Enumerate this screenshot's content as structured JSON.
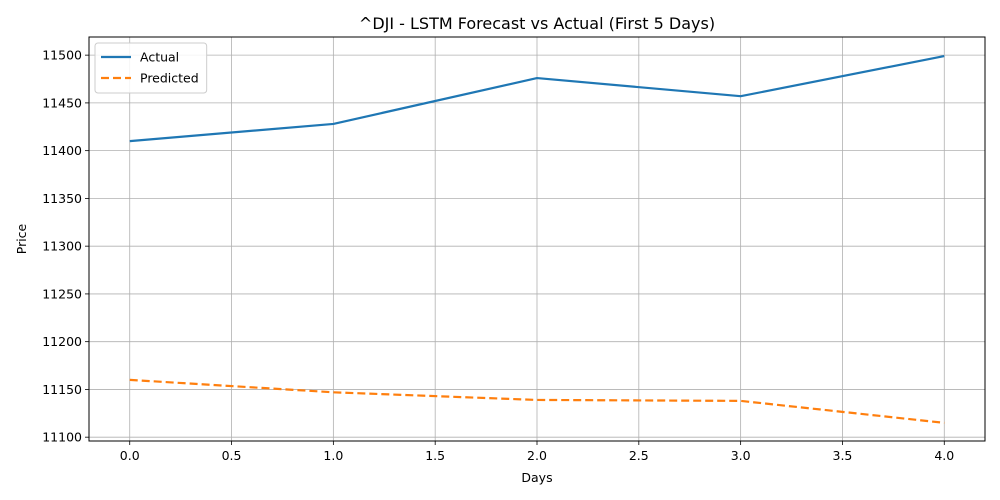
{
  "chart_data": {
    "type": "line",
    "title": "^DJI - LSTM Forecast vs Actual (First 5 Days)",
    "xlabel": "Days",
    "ylabel": "Price",
    "x": [
      0,
      1,
      2,
      3,
      4
    ],
    "xlim": [
      -0.2,
      4.2
    ],
    "ylim": [
      11096,
      11519
    ],
    "xticks": [
      0.0,
      0.5,
      1.0,
      1.5,
      2.0,
      2.5,
      3.0,
      3.5,
      4.0
    ],
    "xtick_labels": [
      "0.0",
      "0.5",
      "1.0",
      "1.5",
      "2.0",
      "2.5",
      "3.0",
      "3.5",
      "4.0"
    ],
    "yticks": [
      11100,
      11150,
      11200,
      11250,
      11300,
      11350,
      11400,
      11450,
      11500
    ],
    "ytick_labels": [
      "11100",
      "11150",
      "11200",
      "11250",
      "11300",
      "11350",
      "11400",
      "11450",
      "11500"
    ],
    "grid": true,
    "legend_position": "top-left",
    "series": [
      {
        "name": "Actual",
        "values": [
          11410,
          11428,
          11476,
          11457,
          11499
        ],
        "color": "#1f77b4",
        "style": "solid"
      },
      {
        "name": "Predicted",
        "values": [
          11160,
          11147,
          11139,
          11138,
          11115
        ],
        "color": "#ff7f0e",
        "style": "dashed"
      }
    ]
  }
}
